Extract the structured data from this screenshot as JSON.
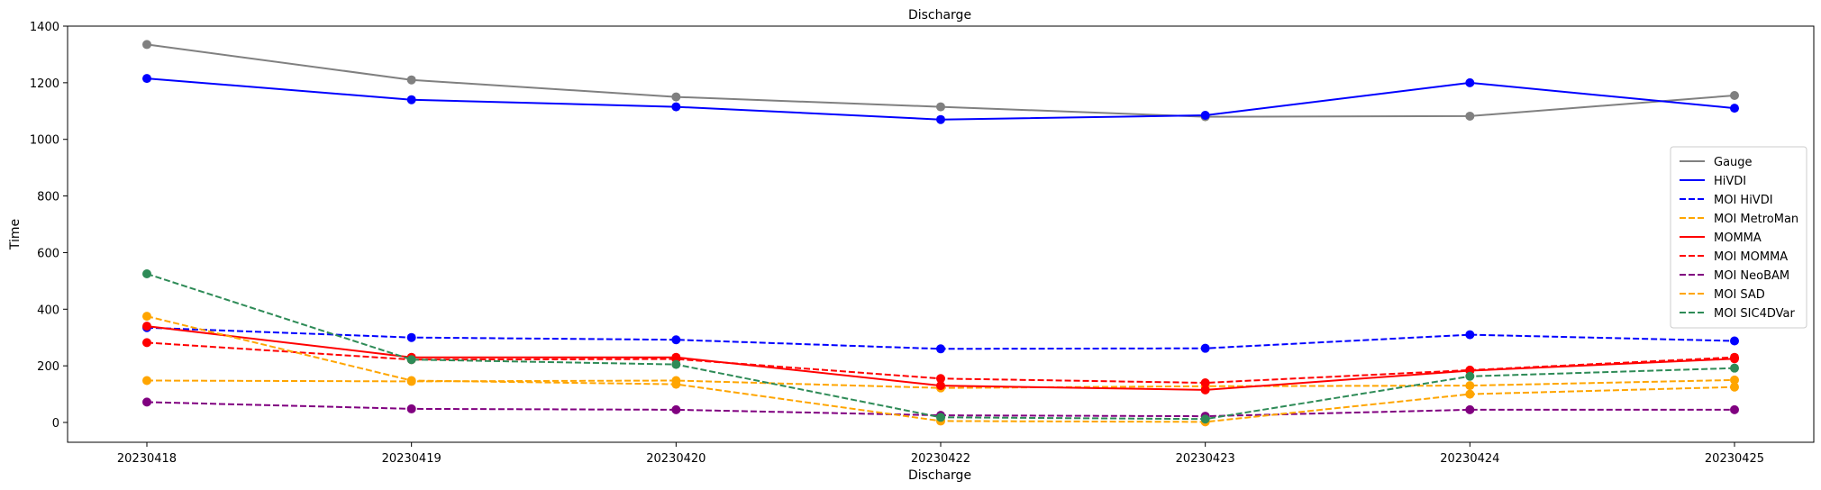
{
  "chart_data": {
    "type": "line",
    "title": "Discharge",
    "xlabel": "Discharge",
    "ylabel": "Time",
    "categories": [
      "20230418",
      "20230419",
      "20230420",
      "20230422",
      "20230423",
      "20230424",
      "20230425"
    ],
    "ylim": [
      -70,
      1400
    ],
    "yticks": [
      0,
      200,
      400,
      600,
      800,
      1000,
      1200,
      1400
    ],
    "grid": false,
    "legend_position": "center-right",
    "series": [
      {
        "name": "Gauge",
        "color": "#808080",
        "linestyle": "solid",
        "values": [
          1335,
          1210,
          1150,
          1115,
          1080,
          1082,
          1155
        ]
      },
      {
        "name": "HiVDI",
        "color": "#0000ff",
        "linestyle": "solid",
        "values": [
          1215,
          1140,
          1115,
          1070,
          1085,
          1200,
          1110
        ]
      },
      {
        "name": "MOI HiVDI",
        "color": "#0000ff",
        "linestyle": "dashed",
        "values": [
          335,
          300,
          292,
          260,
          262,
          310,
          288
        ]
      },
      {
        "name": "MOI MetroMan",
        "color": "#ffa500",
        "linestyle": "dashed",
        "values": [
          148,
          145,
          148,
          122,
          128,
          130,
          150
        ]
      },
      {
        "name": "MOMMA",
        "color": "#ff0000",
        "linestyle": "solid",
        "values": [
          340,
          230,
          230,
          130,
          115,
          183,
          225
        ]
      },
      {
        "name": "MOI MOMMA",
        "color": "#ff0000",
        "linestyle": "dashed",
        "values": [
          282,
          222,
          224,
          155,
          140,
          185,
          230
        ]
      },
      {
        "name": "MOI NeoBAM",
        "color": "#800080",
        "linestyle": "dashed",
        "values": [
          72,
          48,
          45,
          25,
          22,
          45,
          45
        ]
      },
      {
        "name": "MOI SAD",
        "color": "#ffa500",
        "linestyle": "dashed",
        "values": [
          375,
          148,
          135,
          5,
          2,
          100,
          125
        ]
      },
      {
        "name": "MOI SIC4DVar",
        "color": "#2e8b57",
        "linestyle": "dashed",
        "values": [
          525,
          222,
          205,
          18,
          12,
          163,
          192
        ]
      }
    ]
  }
}
